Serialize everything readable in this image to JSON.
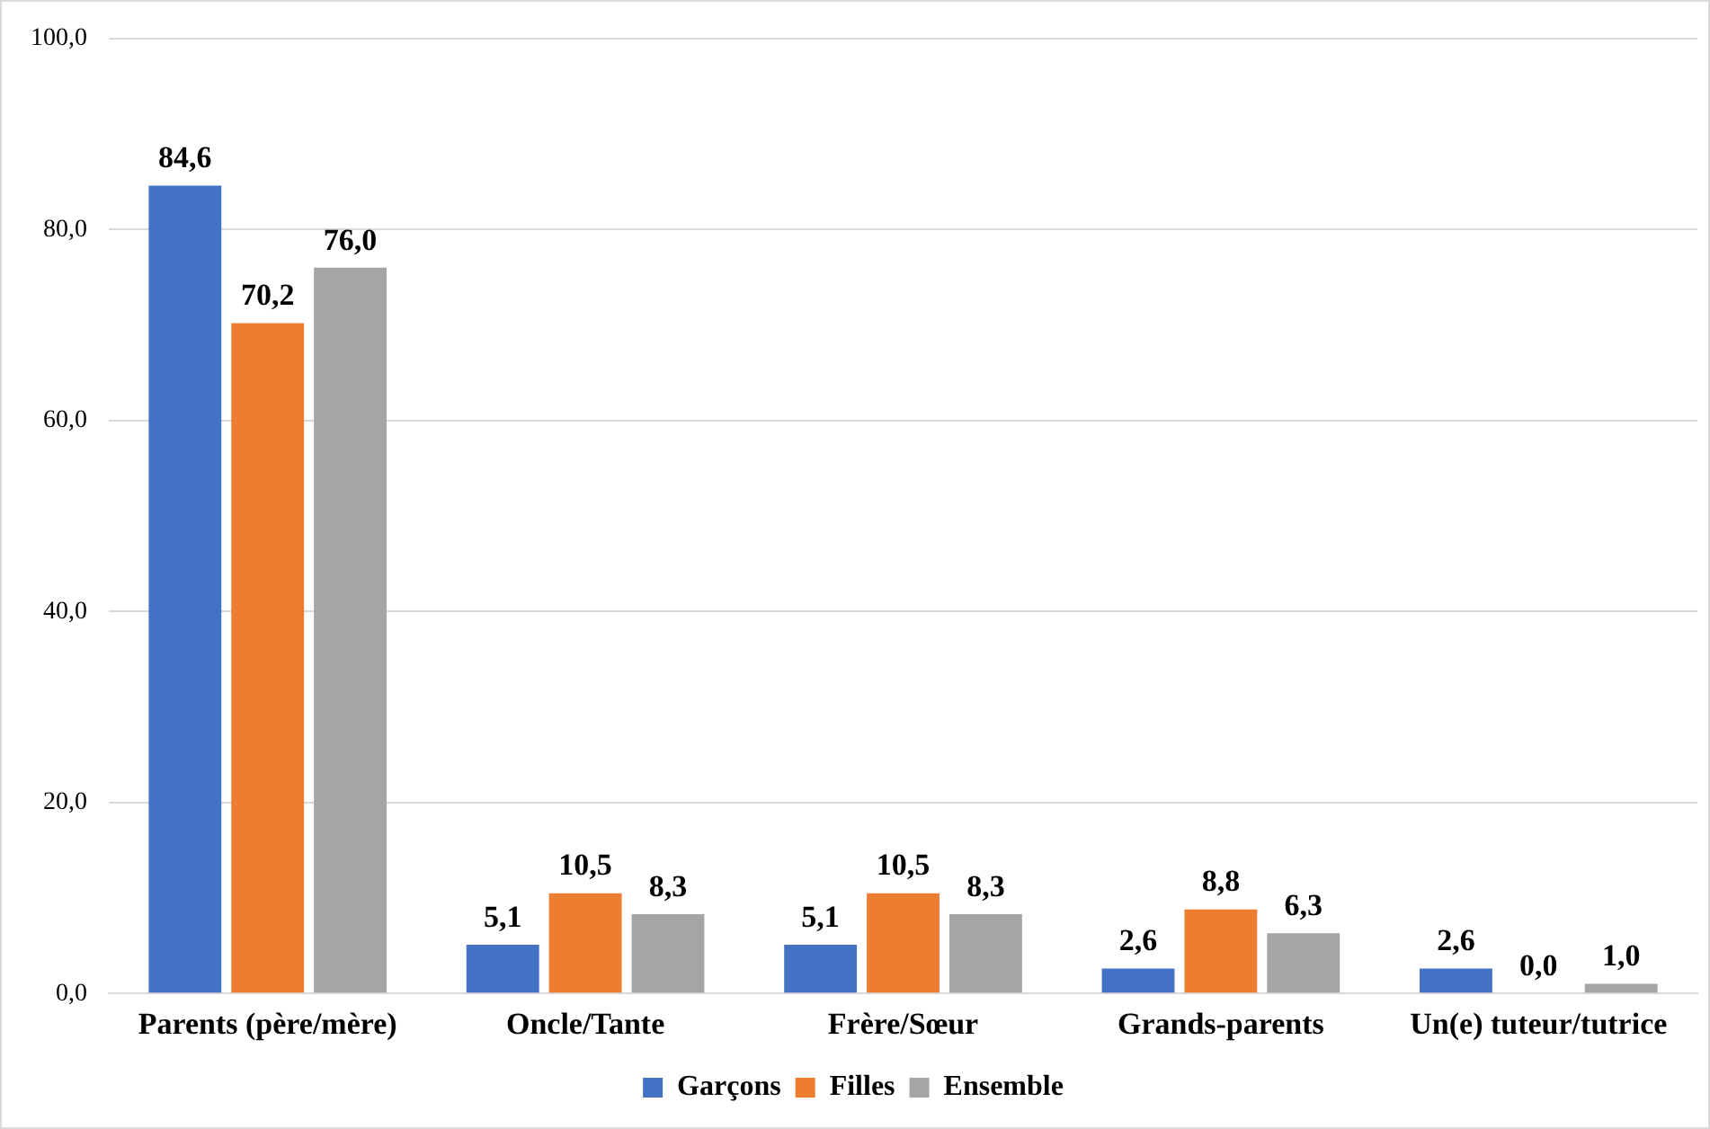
{
  "chart_data": {
    "type": "bar",
    "categories": [
      "Parents (père/mère)",
      "Oncle/Tante",
      "Frère/Sœur",
      "Grands-parents",
      "Un(e) tuteur/tutrice"
    ],
    "series": [
      {
        "name": "Garçons",
        "color": "#4472c4",
        "values": [
          84.6,
          5.1,
          5.1,
          2.6,
          2.6
        ],
        "value_labels": [
          "84,6",
          "5,1",
          "5,1",
          "2,6",
          "2,6"
        ]
      },
      {
        "name": "Filles",
        "color": "#ed7d31",
        "values": [
          70.2,
          10.5,
          10.5,
          8.8,
          0.0
        ],
        "value_labels": [
          "70,2",
          "10,5",
          "10,5",
          "8,8",
          "0,0"
        ]
      },
      {
        "name": "Ensemble",
        "color": "#a5a5a5",
        "values": [
          76.0,
          8.3,
          8.3,
          6.3,
          1.0
        ],
        "value_labels": [
          "76,0",
          "8,3",
          "8,3",
          "6,3",
          "1,0"
        ]
      }
    ],
    "ylim": [
      0,
      100
    ],
    "yticks": [
      {
        "value": 0,
        "label": "0,0"
      },
      {
        "value": 20,
        "label": "20,0"
      },
      {
        "value": 40,
        "label": "40,0"
      },
      {
        "value": 60,
        "label": "60,0"
      },
      {
        "value": 80,
        "label": "80,0"
      },
      {
        "value": 100,
        "label": "100,0"
      }
    ],
    "grid": "y",
    "legend": "bottom"
  }
}
